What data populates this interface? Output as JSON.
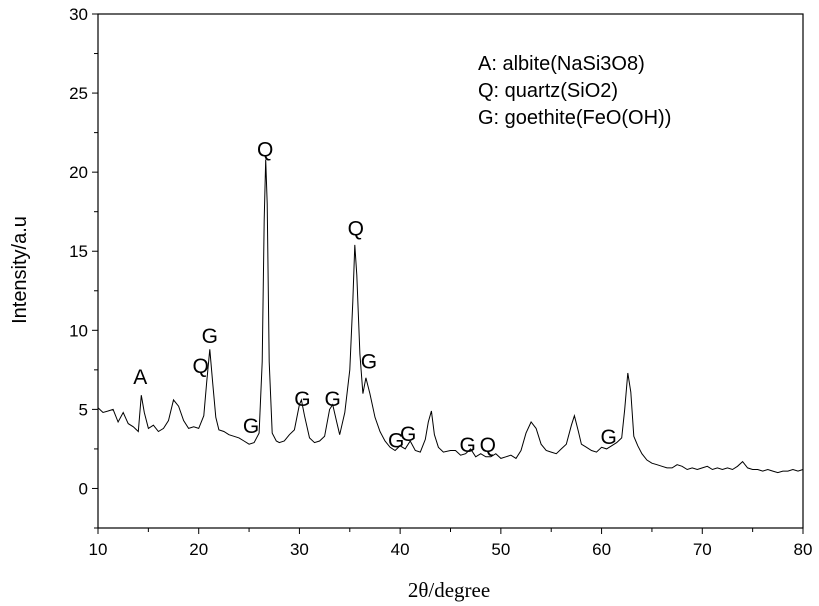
{
  "chart_data": {
    "type": "line",
    "xlabel": "2θ/degree",
    "ylabel": "Intensity/a.u",
    "xlim": [
      10,
      80
    ],
    "ylim": [
      -2.5,
      30
    ],
    "xticks": [
      "10",
      "20",
      "30",
      "40",
      "50",
      "60",
      "70",
      "80"
    ],
    "yticks": [
      "0",
      "5",
      "10",
      "15",
      "20",
      "25",
      "30"
    ],
    "legend_lines": [
      "A: albite(NaSi3O8)",
      "Q: quartz(SiO2)",
      "G: goethite(FeO(OH))"
    ],
    "annotations": [
      {
        "text": "A",
        "x": 14.2,
        "y": 6.6
      },
      {
        "text": "Q",
        "x": 20.2,
        "y": 7.3
      },
      {
        "text": "G",
        "x": 21.1,
        "y": 9.2
      },
      {
        "text": "G",
        "x": 25.2,
        "y": 3.5
      },
      {
        "text": "Q",
        "x": 26.6,
        "y": 21.0
      },
      {
        "text": "G",
        "x": 30.3,
        "y": 5.2
      },
      {
        "text": "G",
        "x": 33.3,
        "y": 5.2
      },
      {
        "text": "Q",
        "x": 35.6,
        "y": 16.0
      },
      {
        "text": "G",
        "x": 36.9,
        "y": 7.6
      },
      {
        "text": "G",
        "x": 39.6,
        "y": 2.6
      },
      {
        "text": "G",
        "x": 40.8,
        "y": 3.0
      },
      {
        "text": "G",
        "x": 46.7,
        "y": 2.3
      },
      {
        "text": "Q",
        "x": 48.7,
        "y": 2.3
      },
      {
        "text": "G",
        "x": 60.7,
        "y": 2.8
      }
    ],
    "series": [
      {
        "x": [
          10,
          10.5,
          11,
          11.5,
          12,
          12.5,
          13,
          13.5,
          14,
          14.3,
          14.6,
          15,
          15.5,
          16,
          16.5,
          17,
          17.5,
          18,
          18.5,
          19,
          19.5,
          20,
          20.5,
          20.8,
          21.1,
          21.4,
          21.7,
          22,
          22.5,
          23,
          23.5,
          24,
          24.5,
          25,
          25.5,
          26,
          26.3,
          26.5,
          26.65,
          26.8,
          27,
          27.3,
          27.7,
          28,
          28.5,
          29,
          29.5,
          30,
          30.2,
          30.5,
          31,
          31.5,
          32,
          32.5,
          33,
          33.3,
          33.7,
          34,
          34.5,
          35,
          35.3,
          35.5,
          35.7,
          36,
          36.3,
          36.6,
          37,
          37.5,
          38,
          38.5,
          39,
          39.5,
          40,
          40.5,
          41,
          41.5,
          42,
          42.5,
          42.8,
          43.1,
          43.4,
          43.8,
          44.3,
          45,
          45.5,
          46,
          46.5,
          47,
          47.5,
          48,
          48.5,
          49,
          49.5,
          50,
          50.5,
          51,
          51.5,
          52,
          52.5,
          53,
          53.5,
          54,
          54.5,
          55,
          55.5,
          56,
          56.5,
          57,
          57.3,
          57.7,
          58,
          58.5,
          59,
          59.5,
          60,
          60.5,
          61,
          61.5,
          62,
          62.3,
          62.6,
          62.9,
          63.2,
          63.6,
          64,
          64.5,
          65,
          65.5,
          66,
          66.5,
          67,
          67.5,
          68,
          68.5,
          69,
          69.5,
          70,
          70.5,
          71,
          71.5,
          72,
          72.5,
          73,
          73.5,
          74,
          74.5,
          75,
          75.5,
          76,
          76.5,
          77,
          77.5,
          78,
          78.5,
          79,
          79.5,
          80
        ],
        "y": [
          5.1,
          4.8,
          4.9,
          5.0,
          4.2,
          4.8,
          4.1,
          3.9,
          3.6,
          5.9,
          4.8,
          3.8,
          4.0,
          3.6,
          3.8,
          4.3,
          5.6,
          5.2,
          4.3,
          3.8,
          3.9,
          3.8,
          4.6,
          6.8,
          8.8,
          6.6,
          4.5,
          3.7,
          3.6,
          3.4,
          3.3,
          3.2,
          3.0,
          2.8,
          2.9,
          3.5,
          8.0,
          17.0,
          20.8,
          18.0,
          8.0,
          3.5,
          3.0,
          2.9,
          3.0,
          3.4,
          3.7,
          5.3,
          5.6,
          4.6,
          3.2,
          2.9,
          3.0,
          3.3,
          5.0,
          5.3,
          4.2,
          3.4,
          4.8,
          7.5,
          11.8,
          15.4,
          13.5,
          8.5,
          6.0,
          7.0,
          6.0,
          4.5,
          3.6,
          3.0,
          2.6,
          2.4,
          2.7,
          2.5,
          3.0,
          2.4,
          2.3,
          3.1,
          4.2,
          4.9,
          3.4,
          2.6,
          2.3,
          2.4,
          2.4,
          2.1,
          2.2,
          2.5,
          2.0,
          2.2,
          2.0,
          2.0,
          2.2,
          1.9,
          2.0,
          2.1,
          1.9,
          2.4,
          3.5,
          4.2,
          3.8,
          2.8,
          2.4,
          2.3,
          2.2,
          2.5,
          2.8,
          4.0,
          4.6,
          3.6,
          2.8,
          2.6,
          2.4,
          2.3,
          2.6,
          2.5,
          2.7,
          2.9,
          3.2,
          5.0,
          7.3,
          6.1,
          3.3,
          2.7,
          2.2,
          1.8,
          1.6,
          1.5,
          1.4,
          1.3,
          1.3,
          1.5,
          1.4,
          1.2,
          1.3,
          1.2,
          1.3,
          1.4,
          1.2,
          1.3,
          1.2,
          1.3,
          1.2,
          1.4,
          1.7,
          1.3,
          1.2,
          1.2,
          1.1,
          1.2,
          1.1,
          1.0,
          1.1,
          1.1,
          1.2,
          1.1,
          1.2
        ]
      }
    ]
  }
}
